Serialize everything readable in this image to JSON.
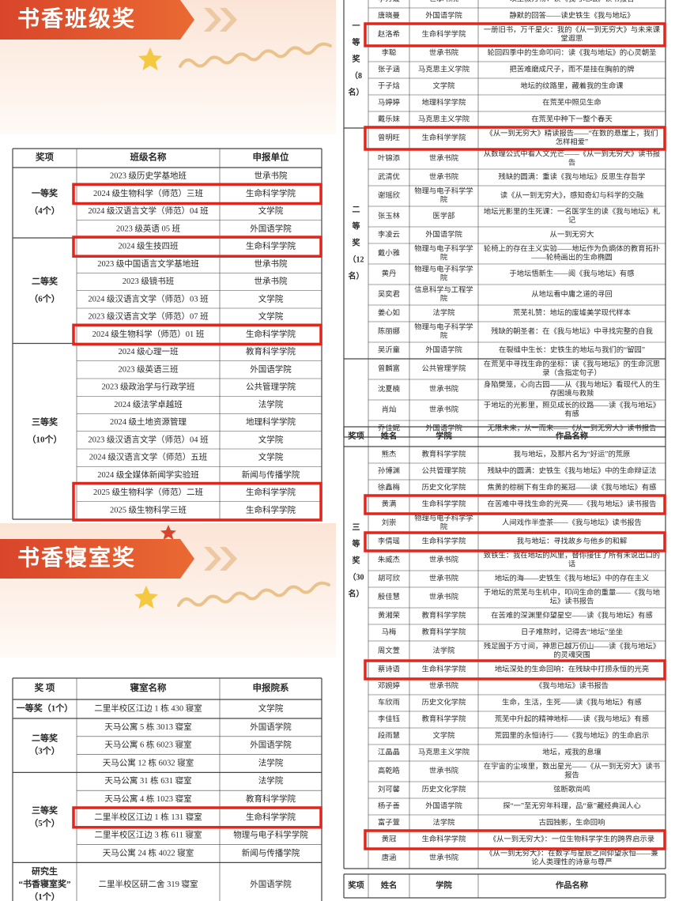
{
  "class_award": {
    "title": "书香班级奖",
    "header": [
      "奖项",
      "班级名称",
      "申报单位"
    ],
    "groups": [
      {
        "award": [
          "一等奖",
          "（4个）"
        ],
        "rows": [
          {
            "cells": [
              "2023 级历史学基地班",
              "世承书院"
            ]
          },
          {
            "cells": [
              "2024 级生物科学（师范）三班",
              "生命科学学院"
            ],
            "highlight": true
          },
          {
            "cells": [
              "2024 级汉语言文学（师范）04 班",
              "文学院"
            ]
          },
          {
            "cells": [
              "2023 级英语 05 班",
              "外国语学院"
            ]
          }
        ]
      },
      {
        "award": [
          "二等奖",
          "（6个）"
        ],
        "rows": [
          {
            "cells": [
              "2024 级生技四班",
              "生命科学学院"
            ],
            "highlight": true
          },
          {
            "cells": [
              "2023 级中国语言文学基地班",
              "世承书院"
            ]
          },
          {
            "cells": [
              "2023 级镜书班",
              "世承书院"
            ]
          },
          {
            "cells": [
              "2024 级汉语言文学（师范）03 班",
              "文学院"
            ]
          },
          {
            "cells": [
              "2023 级汉语言文学（师范）07 班",
              "文学院"
            ]
          },
          {
            "cells": [
              "2024 级生物科学（师范）01 班",
              "生命科学学院"
            ],
            "highlight": true
          }
        ]
      },
      {
        "award": [
          "三等奖",
          "（10个）"
        ],
        "rows": [
          {
            "cells": [
              "2024 级心理一班",
              "教育科学学院"
            ]
          },
          {
            "cells": [
              "2023 级英语三班",
              "外国语学院"
            ]
          },
          {
            "cells": [
              "2023 级政治学与行政学班",
              "公共管理学院"
            ]
          },
          {
            "cells": [
              "2024 级法学卓越班",
              "法学院"
            ]
          },
          {
            "cells": [
              "2024 级土地资源管理",
              "地理科学学院"
            ]
          },
          {
            "cells": [
              "2023 级汉语言文学（师范）04 班",
              "文学院"
            ]
          },
          {
            "cells": [
              "2024 级汉语言文学（师范）五班",
              "文学院"
            ]
          },
          {
            "cells": [
              "2024 级全媒体新闻学实验班",
              "新闻与传播学院"
            ]
          },
          {
            "cells": [
              "2025 级生物科学（师范）二班",
              "生命科学学院"
            ],
            "highlight": true
          },
          {
            "cells": [
              "2025 级生物科学三班",
              "生命科学学院"
            ],
            "highlight": true
          }
        ]
      }
    ]
  },
  "dorm_award": {
    "title": "书香寝室奖",
    "header": [
      "奖 项",
      "寝室名称",
      "申报院系"
    ],
    "groups": [
      {
        "award": [
          "一等奖（1个）"
        ],
        "rows": [
          {
            "cells": [
              "二里半校区江边 1 栋 430 寝室",
              "文学院"
            ]
          }
        ]
      },
      {
        "award": [
          "二等奖",
          "（3个）"
        ],
        "rows": [
          {
            "cells": [
              "天马公寓 5 栋 3013 寝室",
              "外国语学院"
            ]
          },
          {
            "cells": [
              "天马公寓 6 栋 6023 寝室",
              "外国语学院"
            ]
          },
          {
            "cells": [
              "天马公寓 12 栋 6032 寝室",
              "法学院"
            ]
          }
        ]
      },
      {
        "award": [
          "三等奖",
          "（5个）"
        ],
        "rows": [
          {
            "cells": [
              "天马公寓 31 栋 631 寝室",
              "法学院"
            ]
          },
          {
            "cells": [
              "天马公寓 4 栋 1023 寝室",
              "教育科学学院"
            ]
          },
          {
            "cells": [
              "二里半校区江边 1 栋 131 寝室",
              "生命科学学院"
            ],
            "highlight": true
          },
          {
            "cells": [
              "二里半校区江边 3 栋 611 寝室",
              "物理与电子科学学院"
            ]
          },
          {
            "cells": [
              "天马公寓 24 栋 4022 寝室",
              "新闻与传播学院"
            ]
          }
        ]
      },
      {
        "award": [
          "研究生",
          "“书香寝室奖”",
          "（1个）"
        ],
        "rows": [
          {
            "cells": [
              "二里半校区研二舍 319 寝室",
              "外国语学院"
            ]
          }
        ]
      }
    ]
  },
  "reading_award": {
    "tables": [
      {
        "groups": [
          {
            "award": [
              "一",
              "等",
              "奖",
              "（8",
              "名）"
            ],
            "rows": [
              {
                "cells": [
                  "李芳媛",
                  "世承书院",
                  "以生叙万物：读《我与地坛》读书报告"
                ]
              },
              {
                "cells": [
                  "唐晓曼",
                  "外国语学院",
                  "静默的回答——读史铁生《我与地坛》"
                ]
              },
              {
                "cells": [
                  "赵洛希",
                  "生命科学学院",
                  "一册旧书，万千星火：我的《从一到无穷大》与未来课堂遐思"
                ],
                "highlight": true
              },
              {
                "cells": [
                  "李聪",
                  "世承书院",
                  "轮回四季中的生命叩问：读《我与地坛》的心灵朝圣"
                ]
              },
              {
                "cells": [
                  "张子涵",
                  "马克思主义学院",
                  "把苦难磨成尺子，而不是挂在胸前的牌"
                ]
              },
              {
                "cells": [
                  "于子焓",
                  "文学院",
                  "地坛的纹路里，藏着我的生命课"
                ]
              },
              {
                "cells": [
                  "马婷婷",
                  "地理科学学院",
                  "在荒芜中照见生命"
                ]
              },
              {
                "cells": [
                  "戴乐妹",
                  "马克思主义学院",
                  "在荒芜中种下一整个春天"
                ]
              }
            ]
          },
          {
            "award": [
              "二",
              "等",
              "奖",
              "（12",
              "名）"
            ],
            "rows": [
              {
                "cells": [
                  "曾明旺",
                  "生命科学学院",
                  "《从一到无穷大》精读报告——“在数的悬崖上，我们怎样相爱”"
                ],
                "highlight": true
              },
              {
                "cells": [
                  "叶锦添",
                  "世承书院",
                  "从数理公式中看人文光芒——《从一到无穷大》读书报告"
                ]
              },
              {
                "cells": [
                  "武清优",
                  "世承书院",
                  "残缺的圆满：重读《我与地坛》反思生存哲学"
                ]
              },
              {
                "cells": [
                  "谢瑶欣",
                  "物理与电子科学学院",
                  "读《从一到无穷大》，感知奇幻与科学的交融"
                ]
              },
              {
                "cells": [
                  "张玉林",
                  "医学部",
                  "地坛光影里的生死课：一名医学生的读《我与地坛》札记"
                ]
              },
              {
                "cells": [
                  "李凌云",
                  "外国语学院",
                  "从一到无穷大"
                ]
              },
              {
                "cells": [
                  "戴小雅",
                  "物理与电子科学学院",
                  "轮椅上的存在主义实验——地坛作为负熵体的教育拓扑——轮椅画出的生命椭圆"
                ]
              },
              {
                "cells": [
                  "黄丹",
                  "物理与电子科学学院",
                  "于地坛悟新生——阅《我与地坛》有感"
                ]
              },
              {
                "cells": [
                  "吴奕君",
                  "信息科学与工程学院",
                  "从地坛看中庸之道的寻回"
                ]
              },
              {
                "cells": [
                  "姜心如",
                  "法学院",
                  "荒芜礼赞：地坛的废墟美学现代样本"
                ]
              },
              {
                "cells": [
                  "陈丽娜",
                  "物理与电子科学学院",
                  "残缺的朝圣者：在《我与地坛》中寻找完整的自我"
                ]
              },
              {
                "cells": [
                  "吴沂童",
                  "外国语学院",
                  "在裂缝中生长：史铁生的地坛与我们的“留园”"
                ]
              }
            ]
          },
          {
            "rows": [
              {
                "cells": [
                  "曾麟富",
                  "公共管理学院",
                  "在荒芜中寻找生命的坐标：读《我与地坛》的生命沉思录（含指定句子）"
                ]
              },
              {
                "cells": [
                  "沈夏楠",
                  "世承书院",
                  "身陷樊笼，心向古园——从《我与地坛》看现代人的生存困境与救赎"
                ]
              },
              {
                "cells": [
                  "肖灿",
                  "世承书院",
                  "于地坛的光影里，照见成长的纹路——读《我与地坛》有感"
                ]
              },
              {
                "cells": [
                  "乔佳妮",
                  "外国语学院",
                  "无限未来，从一而来——《从一到无穷大》读书报告"
                ]
              }
            ]
          }
        ]
      },
      {
        "header": [
          "奖项",
          "姓名",
          "学院",
          "作品名称"
        ],
        "groups": [
          {
            "award": [
              "三",
              "等",
              "奖",
              "（30",
              "名）"
            ],
            "rows": [
              {
                "cells": [
                  "熊杰",
                  "教育科学学院",
                  "我与地坛，及那片名为“好运”的荒原"
                ]
              },
              {
                "cells": [
                  "孙博渊",
                  "公共管理学院",
                  "残缺中的圆满：史铁生《我与地坛》中的生命辩证法"
                ]
              },
              {
                "cells": [
                  "徐鑫梅",
                  "历史文化学院",
                  "焦黄的棕榈下有生命的冕冠——读《我与地坛》有感"
                ]
              },
              {
                "cells": [
                  "黄满",
                  "生命科学学院",
                  "在苦难中寻找生命的光亮——《我与地坛》读书报告"
                ],
                "highlight": true
              },
              {
                "cells": [
                  "刘崇",
                  "物理与电子科学学院",
                  "人间戏作半壶茶——《我与地坛》读书报告"
                ]
              },
              {
                "cells": [
                  "李倩瑶",
                  "生命科学学院",
                  "我与地坛：寻找故乡与他乡的和解"
                ],
                "highlight": true
              },
              {
                "cells": [
                  "朱威杰",
                  "世承书院",
                  "致铁生：我在地坛的风里，替你接住了所有未说出口的话"
                ]
              },
              {
                "cells": [
                  "胡可欣",
                  "世承书院",
                  "地坛的海——史铁生《我与地坛》中的存在主义"
                ]
              },
              {
                "cells": [
                  "殷佳慧",
                  "世承书院",
                  "于地坛的荒芜与生机中，叩问生命的重量——《我与地坛》读书报告"
                ]
              },
              {
                "cells": [
                  "黄湘荣",
                  "教育科学学院",
                  "在苦难的深渊里仰望星空——读《我与地坛》有感"
                ]
              },
              {
                "cells": [
                  "马梅",
                  "教育科学学院",
                  "日子难熬时，记得去“地坛”坐坐"
                ]
              },
              {
                "cells": [
                  "周文萱",
                  "法学院",
                  "残足囿于方寸间，神思已越万仞山——读《我与地坛》的灵魂突围"
                ]
              },
              {
                "cells": [
                  "蔡诗语",
                  "生命科学学院",
                  "地坛深处的生命回响：在残缺中打捞永恒的光亮"
                ],
                "highlight": true
              },
              {
                "cells": [
                  "邓婉婷",
                  "世承书院",
                  "《我与地坛》读书报告"
                ]
              },
              {
                "cells": [
                  "车欣雨",
                  "历史文化学院",
                  "生命，生活，生死——读《我与地坛》有感"
                ]
              },
              {
                "cells": [
                  "李佳钰",
                  "教育科学学院",
                  "荒芜中升起的精神地标——读《我与地坛》有感"
                ]
              },
              {
                "cells": [
                  "段雨慧",
                  "文学院",
                  "荒园里的永恒诗行——《我与地坛》的生命启示"
                ]
              },
              {
                "cells": [
                  "江晶晶",
                  "马克思主义学院",
                  "地坛，戒我的息壤"
                ]
              },
              {
                "cells": [
                  "高乾皓",
                  "世承书院",
                  "在宇宙的尘埃里，数出星光——《从一到无穷大》读书报告"
                ]
              },
              {
                "cells": [
                  "刘可馨",
                  "历史文化学院",
                  "弦断歌尚鸣"
                ]
              },
              {
                "cells": [
                  "杨子善",
                  "外国语学院",
                  "探“一”至无穷年科理，品“意”藏经典润人心"
                ]
              },
              {
                "cells": [
                  "富子萱",
                  "法学院",
                  "古园独影，生命回响"
                ]
              },
              {
                "cells": [
                  "黄冠",
                  "生命科学学院",
                  "《从一到无穷大》：一位生物科学学生的跨界启示录"
                ],
                "highlight": true
              },
              {
                "cells": [
                  "唐涵",
                  "世承书院",
                  "《从一到无穷大》：在数字与星辰之间仰望永恒——兼论人类理性的诗意与尊严"
                ]
              }
            ]
          }
        ]
      },
      {
        "header": [
          "奖项",
          "姓名",
          "学院",
          "作品名称"
        ]
      }
    ]
  }
}
